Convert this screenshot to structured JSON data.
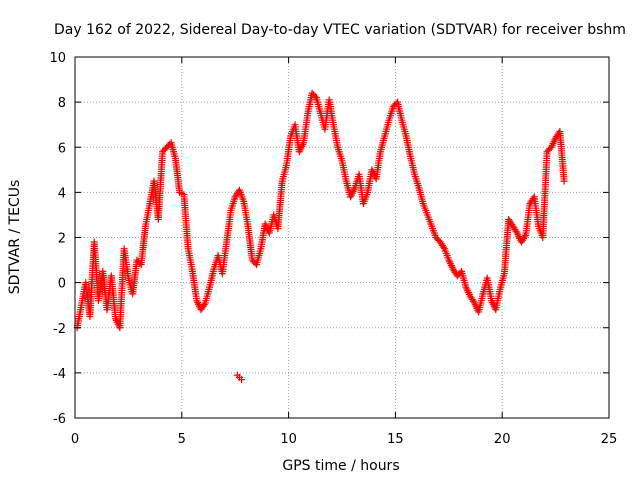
{
  "chart_data": {
    "type": "scatter",
    "title": "Day 162 of 2022, Sidereal Day-to-day VTEC variation (SDTVAR) for receiver bshm",
    "xlabel": "GPS time / hours",
    "ylabel": "SDTVAR / TECUs",
    "xlim": [
      0,
      25
    ],
    "ylim": [
      -6,
      10
    ],
    "x_ticks": [
      "0",
      "5",
      "10",
      "15",
      "20",
      "25"
    ],
    "y_ticks": [
      "-6",
      "-4",
      "-2",
      "0",
      "2",
      "4",
      "6",
      "8",
      "10"
    ],
    "grid": true,
    "marker": "+",
    "color": "#ff0000",
    "series": [
      {
        "name": "SDTVAR",
        "x": [
          0.1,
          0.3,
          0.5,
          0.7,
          0.9,
          1.1,
          1.3,
          1.5,
          1.7,
          1.9,
          2.1,
          2.3,
          2.5,
          2.7,
          2.9,
          3.1,
          3.3,
          3.5,
          3.7,
          3.9,
          4.1,
          4.3,
          4.5,
          4.7,
          4.9,
          5.1,
          5.3,
          5.5,
          5.7,
          5.9,
          6.1,
          6.3,
          6.5,
          6.7,
          6.9,
          7.1,
          7.3,
          7.5,
          7.7,
          7.9,
          8.1,
          8.3,
          8.5,
          8.7,
          8.9,
          9.1,
          9.3,
          9.5,
          9.7,
          9.9,
          10.1,
          10.3,
          10.5,
          10.7,
          10.9,
          11.1,
          11.3,
          11.5,
          11.7,
          11.9,
          12.1,
          12.3,
          12.5,
          12.7,
          12.9,
          13.1,
          13.3,
          13.5,
          13.7,
          13.9,
          14.1,
          14.3,
          14.5,
          14.7,
          14.9,
          15.1,
          15.3,
          15.5,
          15.7,
          15.9,
          16.1,
          16.3,
          16.5,
          16.7,
          16.9,
          17.1,
          17.3,
          17.5,
          17.7,
          17.9,
          18.1,
          18.3,
          18.5,
          18.7,
          18.9,
          19.1,
          19.3,
          19.5,
          19.7,
          19.9,
          20.1,
          20.3,
          20.5,
          20.7,
          20.9,
          21.1,
          21.3,
          21.5,
          21.7,
          21.9,
          22.1,
          22.3,
          22.5,
          22.7,
          22.9
        ],
        "y": [
          -2.0,
          -1.0,
          0.0,
          -1.5,
          1.8,
          -0.8,
          0.5,
          -1.2,
          0.3,
          -1.6,
          -2.0,
          1.5,
          0.2,
          -0.5,
          1.0,
          0.8,
          2.5,
          3.5,
          4.5,
          2.8,
          5.8,
          6.0,
          6.2,
          5.5,
          4.0,
          3.9,
          1.5,
          0.5,
          -0.8,
          -1.2,
          -0.9,
          -0.2,
          0.6,
          1.2,
          0.4,
          1.8,
          3.2,
          3.8,
          4.1,
          3.6,
          2.5,
          1.0,
          0.8,
          1.5,
          2.6,
          2.2,
          3.0,
          2.4,
          4.5,
          5.2,
          6.5,
          7.0,
          5.8,
          6.2,
          7.5,
          8.4,
          8.2,
          7.5,
          6.8,
          8.1,
          7.0,
          6.0,
          5.4,
          4.5,
          3.8,
          4.2,
          4.8,
          3.5,
          4.0,
          5.0,
          4.6,
          5.8,
          6.5,
          7.2,
          7.8,
          8.0,
          7.2,
          6.5,
          5.6,
          4.8,
          4.2,
          3.5,
          3.0,
          2.5,
          2.0,
          1.8,
          1.5,
          1.0,
          0.6,
          0.3,
          0.5,
          -0.2,
          -0.6,
          -0.9,
          -1.3,
          -0.5,
          0.2,
          -0.8,
          -1.2,
          -0.3,
          0.4,
          2.8,
          2.5,
          2.2,
          1.8,
          2.1,
          3.5,
          3.8,
          2.5,
          2.0,
          5.8,
          6.0,
          6.4,
          6.7,
          4.5
        ],
        "outliers": {
          "x": [
            7.6,
            7.7,
            7.8
          ],
          "y": [
            -4.1,
            -4.2,
            -4.3
          ]
        }
      }
    ]
  }
}
